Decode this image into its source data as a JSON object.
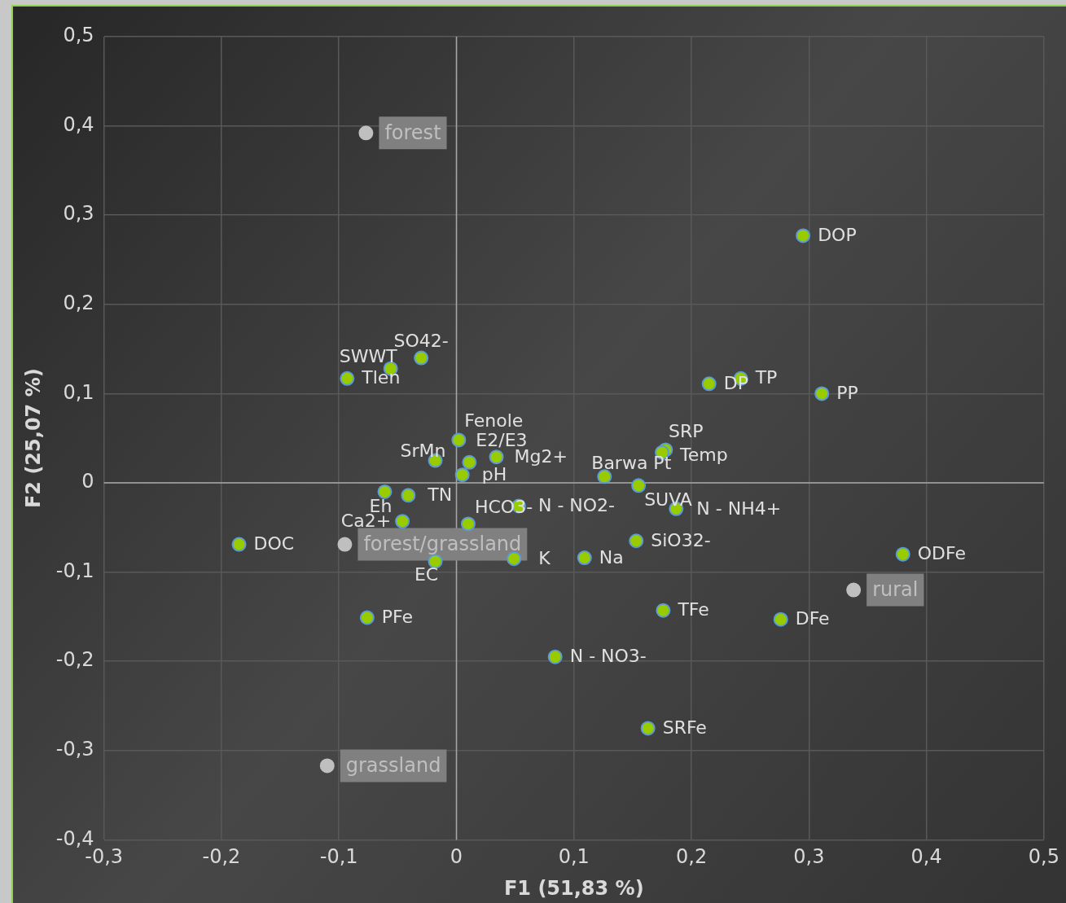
{
  "chart_data": {
    "type": "scatter",
    "xlabel": "F1 (51,83 %)",
    "ylabel": "F2 (25,07 %)",
    "xlim": [
      -0.3,
      0.5
    ],
    "ylim": [
      -0.4,
      0.5
    ],
    "xticks": [
      {
        "value": -0.3,
        "label": "-0,3"
      },
      {
        "value": -0.2,
        "label": "-0,2"
      },
      {
        "value": -0.1,
        "label": "-0,1"
      },
      0,
      {
        "value": 0.1,
        "label": "0,1"
      },
      {
        "value": 0.2,
        "label": "0,2"
      },
      {
        "value": 0.3,
        "label": "0,3"
      },
      {
        "value": 0.4,
        "label": "0,4"
      },
      {
        "value": 0.5,
        "label": "0,5"
      }
    ],
    "yticks": [
      {
        "value": -0.4,
        "label": "-0,4"
      },
      {
        "value": -0.3,
        "label": "-0,3"
      },
      {
        "value": -0.2,
        "label": "-0,2"
      },
      {
        "value": -0.1,
        "label": "-0,1"
      },
      0,
      {
        "value": 0.1,
        "label": "0,1"
      },
      {
        "value": 0.2,
        "label": "0,2"
      },
      {
        "value": 0.3,
        "label": "0,3"
      },
      {
        "value": 0.4,
        "label": "0,4"
      },
      {
        "value": 0.5,
        "label": "0,5"
      }
    ],
    "grid": true,
    "legend": false,
    "marker": "circle",
    "series": [
      {
        "color": "#99cc00",
        "x": [
          0.295,
          -0.03,
          -0.056,
          -0.093,
          0.215,
          0.242,
          0.311,
          0.002,
          0.011,
          0.005,
          -0.018,
          0.034,
          -0.061,
          -0.041,
          -0.046,
          0.01,
          -0.018,
          0.049,
          0.053,
          0.126,
          0.178,
          0.175,
          0.155,
          0.187,
          0.153,
          0.109,
          -0.185,
          0.38,
          -0.076,
          0.176,
          0.276,
          0.084,
          0.163
        ],
        "values": [
          0.277,
          0.14,
          0.128,
          0.117,
          0.111,
          0.117,
          0.1,
          0.048,
          0.023,
          0.009,
          0.025,
          0.029,
          -0.01,
          -0.014,
          -0.043,
          -0.046,
          -0.088,
          -0.085,
          -0.026,
          0.007,
          0.037,
          0.034,
          -0.003,
          -0.029,
          -0.065,
          -0.084,
          -0.069,
          -0.08,
          -0.151,
          -0.143,
          -0.153,
          -0.195,
          -0.275
        ],
        "value_labels": [
          "DOP",
          "SO42-",
          "SWWT",
          "Tlen",
          "DP",
          "TP",
          "PP",
          "Fenole",
          "E2/E3",
          "pH",
          "SrMn",
          "Mg2+",
          "Eh",
          "TN",
          "Ca2+",
          "HCO3-",
          "EC",
          "K",
          "N - NO2-",
          "Barwa Pt",
          "SRP",
          "Temp",
          "SUVA",
          "N - NH4+",
          "SiO32-",
          "Na",
          "DOC",
          "ODFe",
          "PFe",
          "TFe",
          "DFe",
          "N - NO3-",
          "SRFe"
        ]
      },
      {
        "color": "#bfbfbf",
        "x": [
          -0.077,
          0.338,
          -0.11,
          -0.095
        ],
        "values": [
          0.392,
          -0.12,
          -0.317,
          -0.069
        ],
        "value_labels": [
          "forest",
          "rural",
          "grassland",
          "forest/grassland"
        ]
      }
    ]
  }
}
